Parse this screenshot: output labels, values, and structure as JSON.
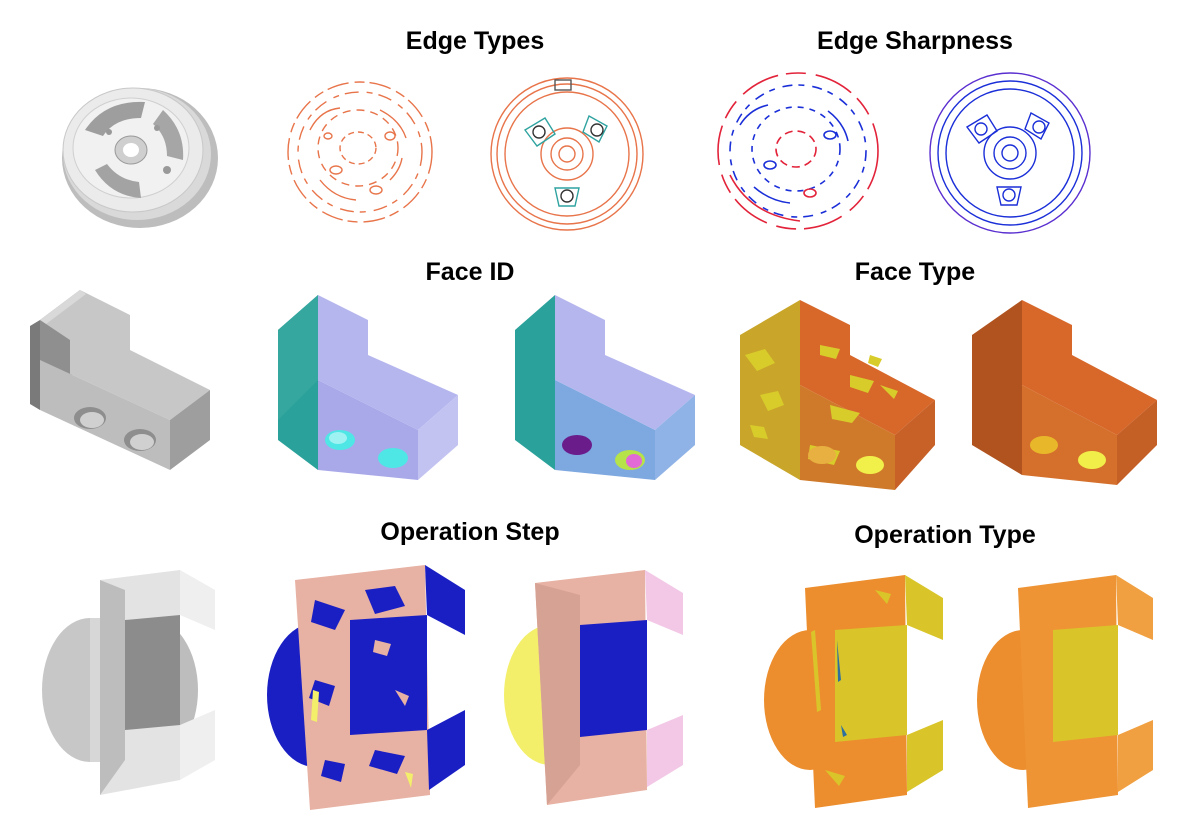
{
  "titles": {
    "edge_types": "Edge Types",
    "edge_sharpness": "Edge Sharpness",
    "face_id": "Face ID",
    "face_type": "Face Type",
    "operation_step": "Operation Step",
    "operation_type": "Operation Type"
  },
  "colors": {
    "gray_light": "#e6e6e6",
    "gray_mid": "#c9c9c9",
    "gray_dark": "#8e8e8e",
    "edge_orange": "#e8744a",
    "edge_teal": "#2fa3a0",
    "sharp_red": "#e2233a",
    "sharp_blue": "#1b2fd8",
    "faceid_lavender": "#b6b6ef",
    "faceid_teal": "#2aa19a",
    "faceid_blue": "#7ea8e0",
    "facetype_orange": "#d8672a",
    "facetype_yellow": "#d8cc2a",
    "opstep_pink": "#e7b1a3",
    "opstep_blue": "#1a1fc4",
    "opstep_yellow": "#f3ef6a",
    "opstep_lightpink": "#f2c8e6",
    "optype_orange": "#ec8e2e",
    "optype_yellow": "#d9c52a"
  }
}
